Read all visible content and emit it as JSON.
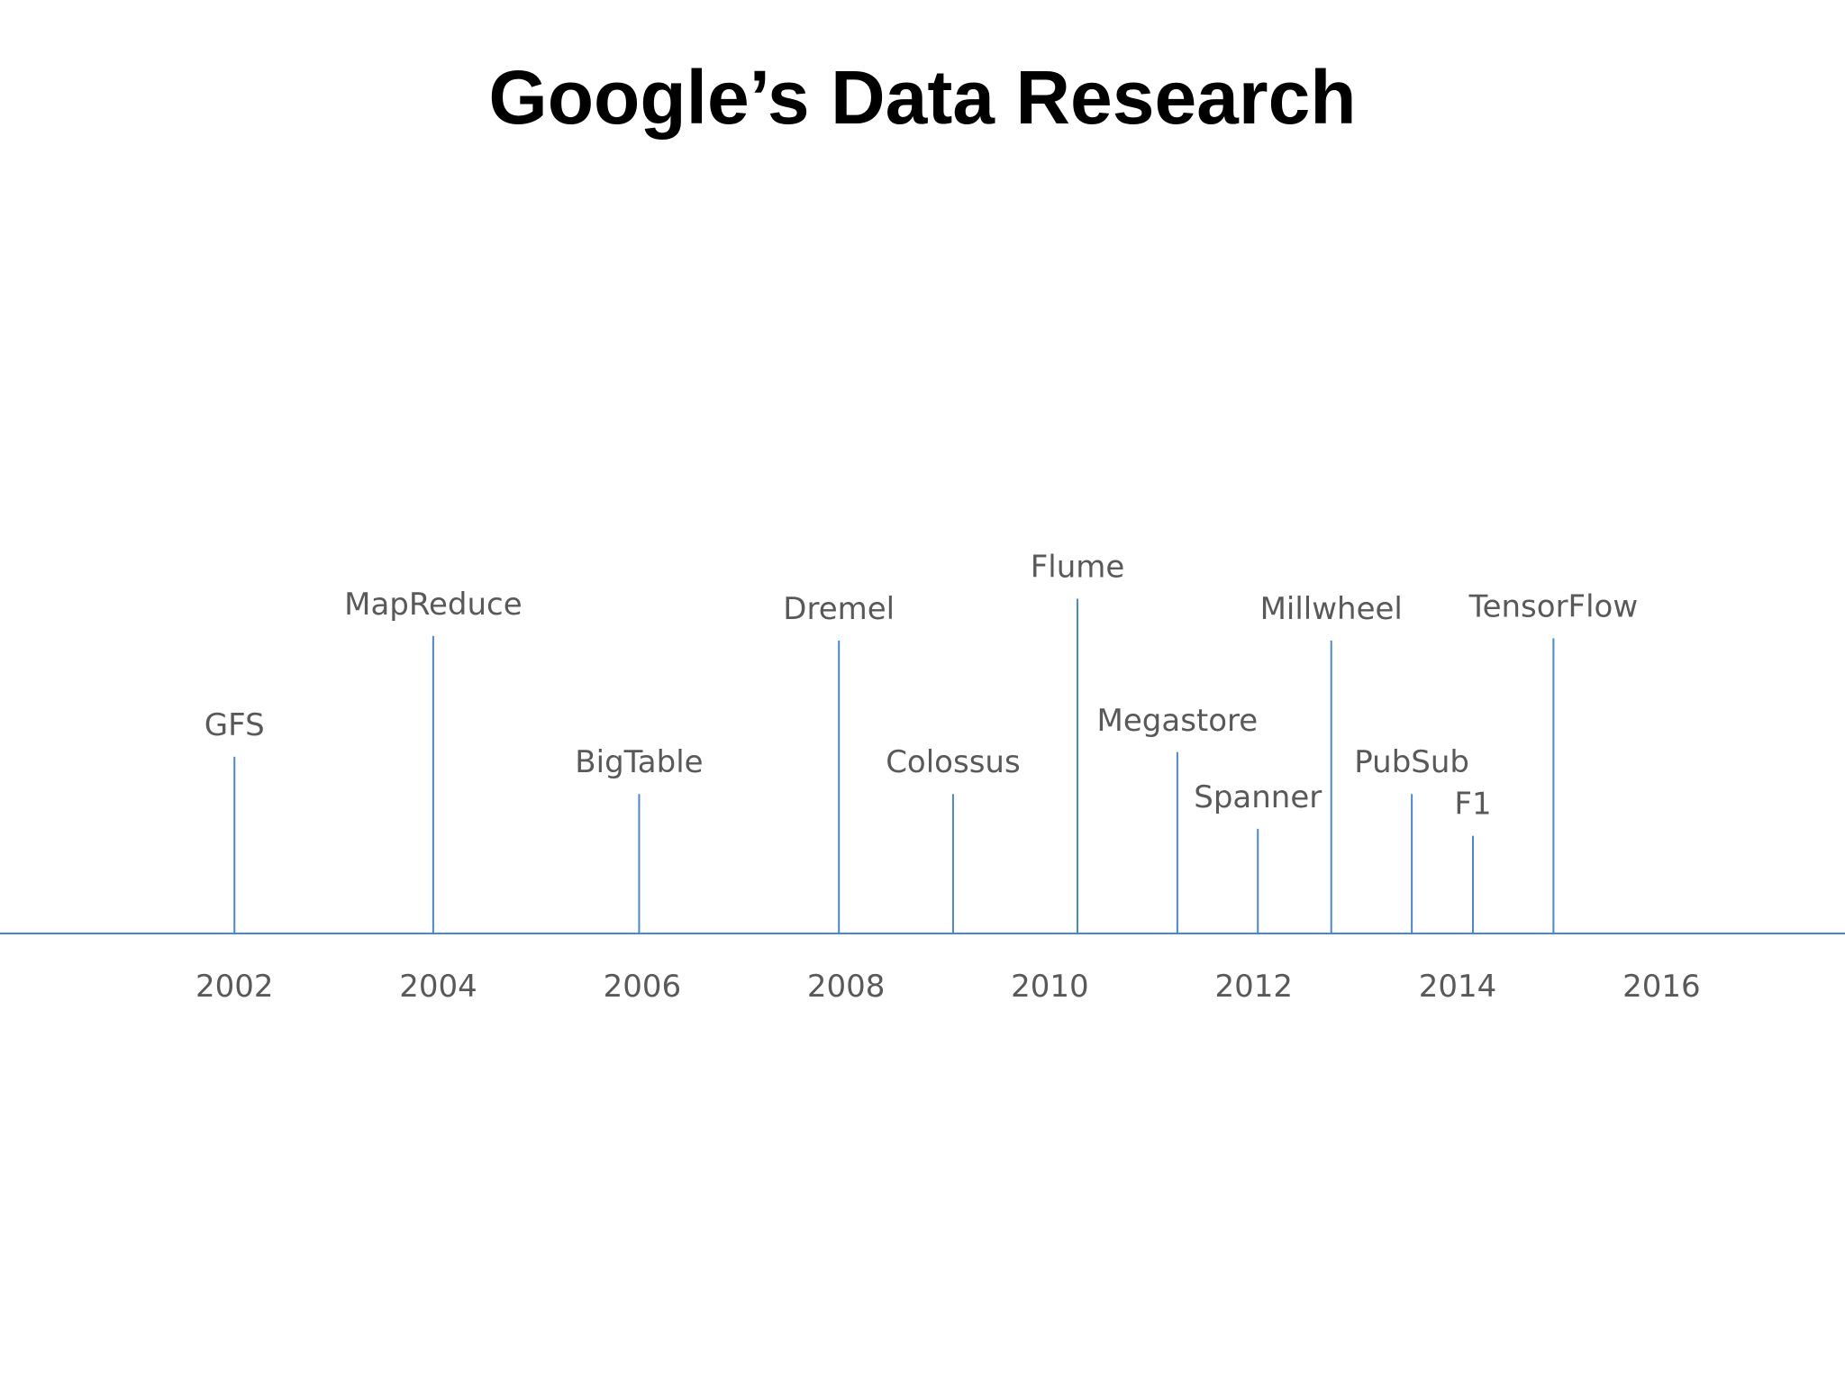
{
  "title": "Google’s Data Research",
  "colors": {
    "line": "#4a86d8",
    "label": "#595959",
    "title": "#000000"
  },
  "chart_data": {
    "type": "timeline",
    "xlim": [
      1999.7,
      2017.8
    ],
    "xticks": [
      2002,
      2004,
      2006,
      2008,
      2010,
      2012,
      2014,
      2016
    ],
    "xtick_labels": [
      "2002",
      "2004",
      "2006",
      "2008",
      "2010",
      "2012",
      "2014",
      "2016"
    ],
    "events": [
      {
        "label": "GFS",
        "year": 2002.0,
        "height": 0.38
      },
      {
        "label": "MapReduce",
        "year": 2003.95,
        "height": 0.64
      },
      {
        "label": "BigTable",
        "year": 2005.97,
        "height": 0.3
      },
      {
        "label": "Dremel",
        "year": 2007.93,
        "height": 0.63
      },
      {
        "label": "Colossus",
        "year": 2009.05,
        "height": 0.3
      },
      {
        "label": "Flume",
        "year": 2010.27,
        "height": 0.72
      },
      {
        "label": "Megastore",
        "year": 2011.25,
        "height": 0.39
      },
      {
        "label": "Spanner",
        "year": 2012.04,
        "height": 0.225
      },
      {
        "label": "Millwheel",
        "year": 2012.76,
        "height": 0.63
      },
      {
        "label": "PubSub",
        "year": 2013.55,
        "height": 0.3
      },
      {
        "label": "F1",
        "year": 2014.15,
        "height": 0.21
      },
      {
        "label": "TensorFlow",
        "year": 2014.94,
        "height": 0.635
      }
    ]
  }
}
